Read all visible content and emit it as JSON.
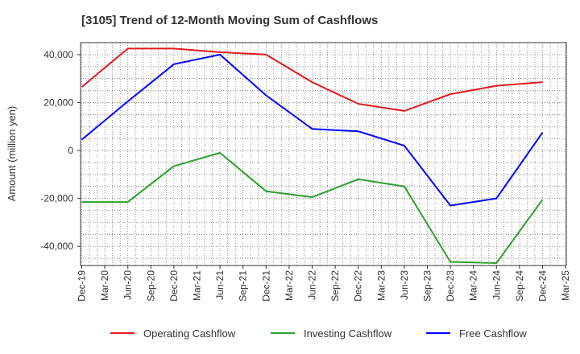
{
  "chart_data": {
    "type": "line",
    "title": "[3105]  Trend of 12-Month Moving Sum of Cashflows",
    "ylabel": "Amount (million yen)",
    "xlabel": "",
    "ylim": [
      -48000,
      45000
    ],
    "yticks": [
      40000,
      20000,
      0,
      -20000,
      -40000
    ],
    "ytick_labels": [
      "40,000",
      "20,000",
      "0",
      "-20,000",
      "-40,000"
    ],
    "categories": [
      "Dec-19",
      "Mar-20",
      "Jun-20",
      "Sep-20",
      "Dec-20",
      "Mar-21",
      "Jun-21",
      "Sep-21",
      "Dec-21",
      "Mar-22",
      "Jun-22",
      "Sep-22",
      "Dec-22",
      "Mar-23",
      "Jun-23",
      "Sep-23",
      "Dec-23",
      "Mar-24",
      "Jun-24",
      "Sep-24",
      "Dec-24",
      "Mar-25"
    ],
    "grid": true,
    "legend_position": "bottom",
    "series": [
      {
        "name": "Operating Cashflow",
        "color": "#e41a1c",
        "points": [
          [
            "Dec-19",
            26500
          ],
          [
            "Jun-20",
            42500
          ],
          [
            "Dec-20",
            42500
          ],
          [
            "Jun-21",
            41000
          ],
          [
            "Dec-21",
            40000
          ],
          [
            "Jun-22",
            28500
          ],
          [
            "Dec-22",
            19500
          ],
          [
            "Jun-23",
            16500
          ],
          [
            "Dec-23",
            23500
          ],
          [
            "Jun-24",
            27000
          ],
          [
            "Dec-24",
            28500
          ]
        ]
      },
      {
        "name": "Investing Cashflow",
        "color": "#2ca02c",
        "points": [
          [
            "Dec-19",
            -21500
          ],
          [
            "Jun-20",
            -21500
          ],
          [
            "Dec-20",
            -6500
          ],
          [
            "Jun-21",
            -1000
          ],
          [
            "Dec-21",
            -17000
          ],
          [
            "Jun-22",
            -19500
          ],
          [
            "Dec-22",
            -12000
          ],
          [
            "Jun-23",
            -15000
          ],
          [
            "Dec-23",
            -46500
          ],
          [
            "Jun-24",
            -47000
          ],
          [
            "Dec-24",
            -20500
          ]
        ]
      },
      {
        "name": "Free Cashflow",
        "color": "#0000ff",
        "points": [
          [
            "Dec-19",
            4500
          ],
          [
            "Jun-20",
            20500
          ],
          [
            "Dec-20",
            36000
          ],
          [
            "Jun-21",
            40000
          ],
          [
            "Dec-21",
            23000
          ],
          [
            "Jun-22",
            9000
          ],
          [
            "Dec-22",
            8000
          ],
          [
            "Jun-23",
            2000
          ],
          [
            "Dec-23",
            -23000
          ],
          [
            "Jun-24",
            -20000
          ],
          [
            "Dec-24",
            7500
          ]
        ]
      }
    ]
  }
}
